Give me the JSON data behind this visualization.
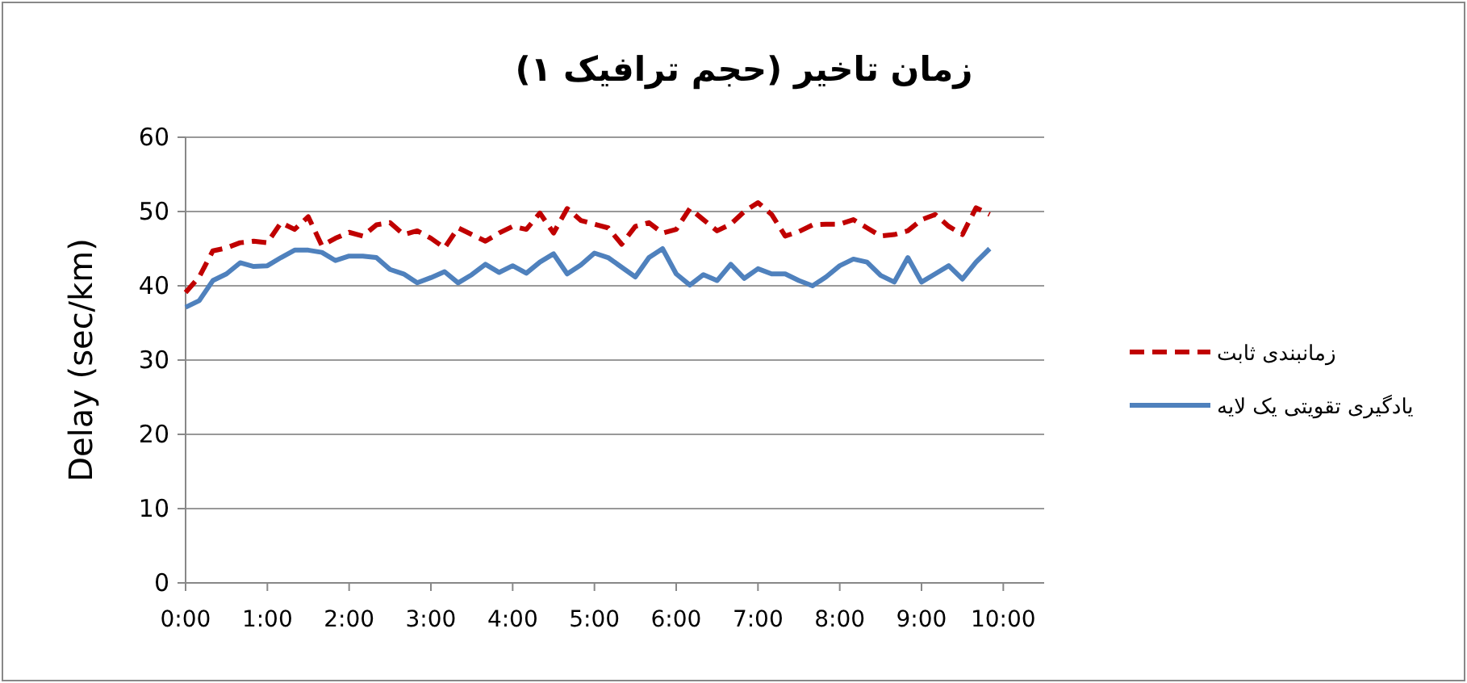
{
  "chart_data": {
    "type": "line",
    "title": "زمان تاخیر (حجم ترافیک ۱)",
    "ylabel": "Delay (sec/km)",
    "x": [
      0,
      0.167,
      0.333,
      0.5,
      0.667,
      0.833,
      1,
      1.167,
      1.333,
      1.5,
      1.667,
      1.833,
      2,
      2.167,
      2.333,
      2.5,
      2.667,
      2.833,
      3,
      3.167,
      3.333,
      3.5,
      3.667,
      3.833,
      4,
      4.167,
      4.333,
      4.5,
      4.667,
      4.833,
      5,
      5.167,
      5.333,
      5.5,
      5.667,
      5.833,
      6,
      6.167,
      6.333,
      6.5,
      6.667,
      6.833,
      7,
      7.167,
      7.333,
      7.5,
      7.667,
      7.833,
      8,
      8.167,
      8.333,
      8.5,
      8.667,
      8.833,
      9,
      9.167,
      9.333,
      9.5,
      9.667,
      9.833
    ],
    "xlim": [
      0,
      10.5
    ],
    "xticks": [
      {
        "value": 0,
        "label": "0:00"
      },
      {
        "value": 1,
        "label": "1:00"
      },
      {
        "value": 2,
        "label": "2:00"
      },
      {
        "value": 3,
        "label": "3:00"
      },
      {
        "value": 4,
        "label": "4:00"
      },
      {
        "value": 5,
        "label": "5:00"
      },
      {
        "value": 6,
        "label": "6:00"
      },
      {
        "value": 7,
        "label": "7:00"
      },
      {
        "value": 8,
        "label": "8:00"
      },
      {
        "value": 9,
        "label": "9:00"
      },
      {
        "value": 10,
        "label": "10:00"
      }
    ],
    "ylim": [
      0,
      60
    ],
    "yticks": [
      0,
      10,
      20,
      30,
      40,
      50,
      60
    ],
    "grid": "y",
    "legend": "right",
    "series": [
      {
        "name": "زمانبندی ثابت",
        "color": "#c00000",
        "line_style": "dashed",
        "values": [
          39.1,
          41.2,
          44.7,
          45.1,
          45.8,
          46,
          45.8,
          48.5,
          47.6,
          49.3,
          45.4,
          46.4,
          47.2,
          46.7,
          48.2,
          48.5,
          46.9,
          47.4,
          46.4,
          45.1,
          47.8,
          46.9,
          46,
          47.1,
          48,
          47.6,
          49.8,
          47.1,
          50.4,
          48.8,
          48.3,
          47.8,
          45.6,
          48,
          48.5,
          47.1,
          47.6,
          50.4,
          48.9,
          47.4,
          48.3,
          50,
          51.2,
          49.6,
          46.7,
          47.3,
          48.2,
          48.3,
          48.3,
          48.9,
          47.8,
          46.7,
          46.9,
          47.4,
          48.9,
          49.6,
          48,
          46.9,
          50.5,
          49.6
        ]
      },
      {
        "name": "یادگیری تقویتی یک لایه",
        "color": "#4f81bd",
        "line_style": "solid",
        "values": [
          37.1,
          38,
          40.7,
          41.6,
          43.1,
          42.6,
          42.7,
          43.8,
          44.8,
          44.8,
          44.5,
          43.4,
          44,
          44,
          43.8,
          42.2,
          41.6,
          40.4,
          41.1,
          41.9,
          40.4,
          41.5,
          42.9,
          41.8,
          42.7,
          41.7,
          43.2,
          44.3,
          41.6,
          42.8,
          44.4,
          43.8,
          42.5,
          41.2,
          43.8,
          45,
          41.6,
          40.1,
          41.5,
          40.7,
          42.9,
          41,
          42.3,
          41.6,
          41.6,
          40.7,
          40,
          41.2,
          42.7,
          43.6,
          43.2,
          41.4,
          40.5,
          43.8,
          40.5,
          41.6,
          42.7,
          40.9,
          43.2,
          45
        ]
      }
    ]
  }
}
